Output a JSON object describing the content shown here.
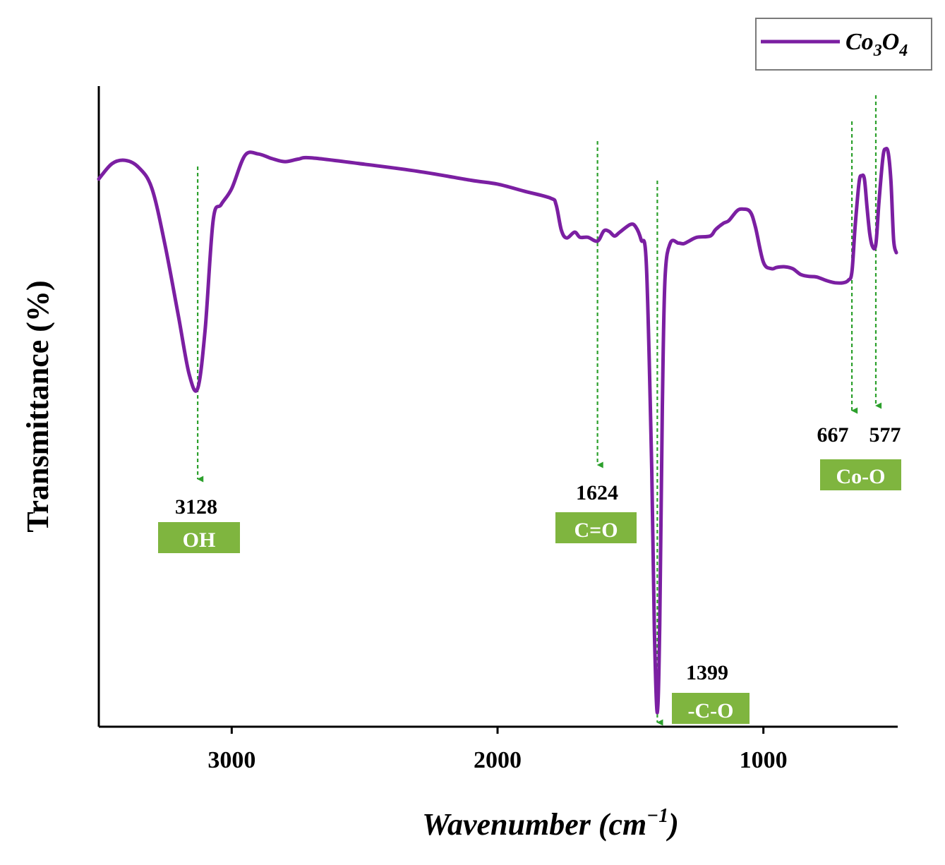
{
  "chart_data": {
    "type": "line",
    "title": "",
    "xlabel": "Wavenumber (cm⁻¹)",
    "ylabel": "Transmittance (%)",
    "xlim": [
      3500,
      500
    ],
    "x_reversed": true,
    "ylim": [
      0,
      100
    ],
    "yticks_shown": false,
    "xticks": [
      3000,
      2000,
      1000
    ],
    "xtick_labels": [
      "3000",
      "2000",
      "1000"
    ],
    "legend": {
      "position": "top-right",
      "entries": [
        {
          "name": "Co3O4",
          "display": "Co₃O₄",
          "color": "#7b1fa2"
        }
      ]
    },
    "colors": {
      "line": "#7b1fa2",
      "marker_arrow": "#2ca02c",
      "tag_bg": "#7fb53f",
      "axis": "#000000"
    },
    "series": [
      {
        "name": "Co3O4",
        "points": [
          [
            3500,
            85.5
          ],
          [
            3450,
            87.9
          ],
          [
            3400,
            88.4
          ],
          [
            3350,
            87.3
          ],
          [
            3300,
            84.0
          ],
          [
            3250,
            75.0
          ],
          [
            3200,
            64.0
          ],
          [
            3160,
            55.0
          ],
          [
            3128,
            52.8
          ],
          [
            3100,
            62.0
          ],
          [
            3070,
            79.0
          ],
          [
            3040,
            81.5
          ],
          [
            3000,
            84.0
          ],
          [
            2950,
            89.2
          ],
          [
            2900,
            89.4
          ],
          [
            2850,
            88.7
          ],
          [
            2800,
            88.2
          ],
          [
            2750,
            88.6
          ],
          [
            2700,
            88.8
          ],
          [
            2500,
            87.8
          ],
          [
            2300,
            86.7
          ],
          [
            2100,
            85.3
          ],
          [
            2000,
            84.7
          ],
          [
            1900,
            83.6
          ],
          [
            1800,
            82.5
          ],
          [
            1780,
            81.5
          ],
          [
            1760,
            77.5
          ],
          [
            1740,
            76.3
          ],
          [
            1710,
            77.2
          ],
          [
            1690,
            76.4
          ],
          [
            1660,
            76.4
          ],
          [
            1624,
            75.8
          ],
          [
            1600,
            77.4
          ],
          [
            1580,
            77.3
          ],
          [
            1560,
            76.6
          ],
          [
            1540,
            77.2
          ],
          [
            1500,
            78.4
          ],
          [
            1480,
            78.0
          ],
          [
            1460,
            76.0
          ],
          [
            1440,
            72.0
          ],
          [
            1420,
            40.0
          ],
          [
            1410,
            15.0
          ],
          [
            1399,
            2.2
          ],
          [
            1390,
            16.0
          ],
          [
            1380,
            50.0
          ],
          [
            1370,
            70.0
          ],
          [
            1350,
            75.5
          ],
          [
            1320,
            75.5
          ],
          [
            1300,
            75.4
          ],
          [
            1280,
            75.8
          ],
          [
            1250,
            76.4
          ],
          [
            1200,
            76.6
          ],
          [
            1180,
            77.6
          ],
          [
            1150,
            78.6
          ],
          [
            1130,
            79.0
          ],
          [
            1100,
            80.5
          ],
          [
            1080,
            80.8
          ],
          [
            1050,
            80.4
          ],
          [
            1030,
            78.0
          ],
          [
            1000,
            72.5
          ],
          [
            970,
            71.5
          ],
          [
            950,
            71.7
          ],
          [
            920,
            71.8
          ],
          [
            890,
            71.5
          ],
          [
            860,
            70.6
          ],
          [
            830,
            70.3
          ],
          [
            800,
            70.2
          ],
          [
            760,
            69.6
          ],
          [
            730,
            69.3
          ],
          [
            700,
            69.3
          ],
          [
            680,
            69.7
          ],
          [
            667,
            71.0
          ],
          [
            655,
            78.0
          ],
          [
            640,
            85.0
          ],
          [
            630,
            86.0
          ],
          [
            620,
            85.5
          ],
          [
            610,
            81.0
          ],
          [
            600,
            77.0
          ],
          [
            590,
            75.0
          ],
          [
            577,
            75.3
          ],
          [
            565,
            82.0
          ],
          [
            550,
            89.0
          ],
          [
            540,
            90.2
          ],
          [
            530,
            89.5
          ],
          [
            520,
            85.0
          ],
          [
            510,
            76.0
          ],
          [
            500,
            74.0
          ]
        ]
      }
    ],
    "annotations": [
      {
        "wavenumber": 3128,
        "label": "3128",
        "group": "OH",
        "show_group": true
      },
      {
        "wavenumber": 1624,
        "label": "1624",
        "group": "C=O",
        "show_group": true
      },
      {
        "wavenumber": 1399,
        "label": "1399",
        "group": "-C-O",
        "show_group": true
      },
      {
        "wavenumber": 667,
        "label": "667",
        "group": "Co-O",
        "show_group": true
      },
      {
        "wavenumber": 577,
        "label": "577",
        "group": "Co-O",
        "show_group": false
      }
    ]
  }
}
